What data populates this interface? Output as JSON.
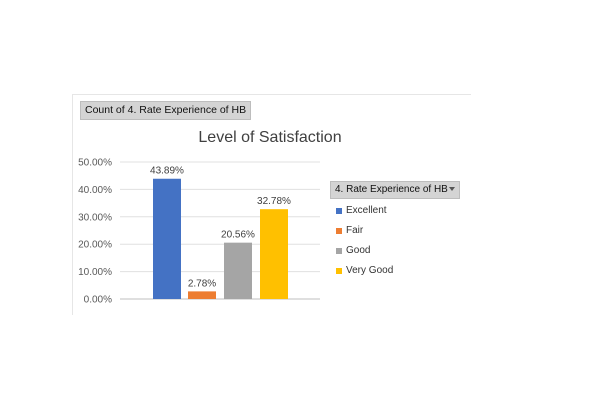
{
  "pivot": {
    "field_button_label": "Count of 4. Rate Experience of HB",
    "legend_field_label": "4. Rate Experience of HB"
  },
  "chart_data": {
    "type": "bar",
    "title": "Level of Satisfaction",
    "xlabel": "",
    "ylabel": "",
    "categories": [
      "Excellent",
      "Fair",
      "Good",
      "Very Good"
    ],
    "values": [
      43.89,
      2.78,
      20.56,
      32.78
    ],
    "data_labels": [
      "43.89%",
      "2.78%",
      "20.56%",
      "32.78%"
    ],
    "colors": [
      "#4472C4",
      "#ED7D31",
      "#A5A5A5",
      "#FFC000"
    ],
    "ylim": [
      0,
      50
    ],
    "yticks": [
      0,
      10,
      20,
      30,
      40,
      50
    ],
    "ytick_labels": [
      "0.00%",
      "10.00%",
      "20.00%",
      "30.00%",
      "40.00%",
      "50.00%"
    ],
    "grid": true,
    "legend_placement": "right"
  }
}
